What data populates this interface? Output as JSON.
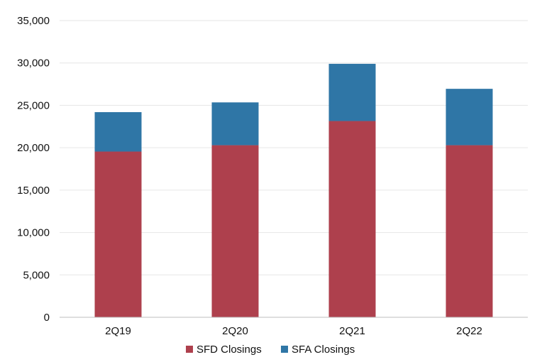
{
  "chart_data": {
    "type": "bar",
    "stacked": true,
    "title": "",
    "xlabel": "",
    "ylabel": "",
    "categories": [
      "2Q19",
      "2Q20",
      "2Q21",
      "2Q22"
    ],
    "series": [
      {
        "name": "SFD Closings",
        "color": "#ae404d",
        "values": [
          19550,
          20300,
          23150,
          20300
        ]
      },
      {
        "name": "SFA Closings",
        "color": "#2f76a6",
        "values": [
          4650,
          5050,
          6750,
          6650
        ]
      }
    ],
    "ylim": [
      0,
      35000
    ],
    "yticks": [
      0,
      5000,
      10000,
      15000,
      20000,
      25000,
      30000,
      35000
    ],
    "ytick_labels": [
      "0",
      "5,000",
      "10,000",
      "15,000",
      "20,000",
      "25,000",
      "30,000",
      "35,000"
    ],
    "grid": true,
    "legend_position": "bottom"
  }
}
